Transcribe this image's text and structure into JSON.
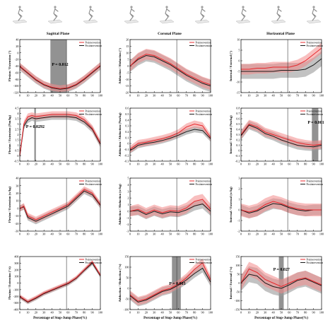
{
  "figure": {
    "column_titles": [
      "Sagittal Plane",
      "Coronal Plane",
      "Horizontal Plane"
    ],
    "xlabel": "Percentage of Stop-Jump Phase(%)",
    "xticks": [
      0,
      10,
      20,
      30,
      40,
      50,
      60,
      70,
      80,
      90,
      100
    ],
    "legend": [
      "Preintervention",
      "Postintervention"
    ],
    "colors": {
      "pre": "#e8282d",
      "pre_band": "#f28b8b",
      "post": "#1a1a1a",
      "post_band": "#9a9a9a",
      "sig": "#6e6e6e"
    },
    "icon_names": [
      "skier-posture-icon-1",
      "skier-posture-icon-2",
      "skier-posture-icon-3",
      "skier-posture-icon-4",
      "skier-posture-icon-5",
      "skier-posture-icon-6",
      "skier-posture-icon-7",
      "skier-posture-icon-8",
      "skier-posture-icon-9"
    ]
  },
  "chart_data": [
    {
      "type": "line",
      "row": 0,
      "col": 0,
      "ylabel": "Flexion / Extension (°)",
      "ylim": [
        -120,
        40
      ],
      "yticks": [
        -120,
        -100,
        -80,
        -60,
        -40,
        -20,
        0,
        20,
        40
      ],
      "x": [
        0,
        10,
        20,
        30,
        40,
        50,
        60,
        70,
        80,
        90,
        100
      ],
      "series": [
        {
          "name": "Preintervention",
          "values": [
            -40,
            -60,
            -80,
            -95,
            -104,
            -108,
            -105,
            -95,
            -78,
            -58,
            -38
          ],
          "band": 10
        },
        {
          "name": "Postintervention",
          "values": [
            -42,
            -62,
            -82,
            -97,
            -106,
            -110,
            -107,
            -97,
            -80,
            -60,
            -40
          ],
          "band": 11
        }
      ],
      "shaded_regions": [
        {
          "from": 38,
          "to": 58
        }
      ],
      "annotations": [
        {
          "text": "P = 0.012"
        }
      ],
      "vline": 58
    },
    {
      "type": "line",
      "row": 0,
      "col": 1,
      "ylabel": "Adduction / Abduction (°)",
      "ylim": [
        -20,
        20
      ],
      "yticks": [
        -20,
        -15,
        -10,
        -5,
        0,
        5,
        10,
        15,
        20
      ],
      "x": [
        0,
        10,
        20,
        30,
        40,
        50,
        60,
        70,
        80,
        90,
        100
      ],
      "series": [
        {
          "name": "Preintervention",
          "values": [
            0,
            6,
            9,
            8,
            5,
            2,
            -2,
            -6,
            -9,
            -12,
            -14
          ],
          "band": 4
        },
        {
          "name": "Postintervention",
          "values": [
            0,
            5,
            8,
            7,
            4,
            1,
            -3,
            -7,
            -10,
            -13,
            -15
          ],
          "band": 4.5
        }
      ],
      "shaded_regions": [],
      "annotations": [],
      "vline": 58
    },
    {
      "type": "line",
      "row": 0,
      "col": 2,
      "ylabel": "Internal / External (°)",
      "ylim": [
        -15,
        10
      ],
      "yticks": [
        -15,
        -10,
        -5,
        0,
        5,
        10
      ],
      "x": [
        0,
        10,
        20,
        30,
        40,
        50,
        60,
        70,
        80,
        90,
        100
      ],
      "series": [
        {
          "name": "Preintervention",
          "values": [
            -4,
            -4,
            -3.5,
            -3.5,
            -3,
            -3,
            -3,
            -2,
            0,
            3,
            6
          ],
          "band": 2.5
        },
        {
          "name": "Postintervention",
          "values": [
            -5,
            -5,
            -5,
            -5,
            -5,
            -4.5,
            -4.5,
            -4.5,
            -4,
            -2,
            1
          ],
          "band": 3.5
        }
      ],
      "shaded_regions": [],
      "annotations": [],
      "vline": 58
    },
    {
      "type": "line",
      "row": 1,
      "col": 0,
      "ylabel": "Flexion / Extension (Nm/kg)",
      "ylim": [
        -0.5,
        4.5
      ],
      "yticks": [
        -0.5,
        0,
        0.5,
        1,
        1.5,
        2,
        2.5,
        3,
        3.5,
        4,
        4.5
      ],
      "x": [
        0,
        5,
        10,
        15,
        20,
        30,
        40,
        50,
        60,
        70,
        80,
        90,
        100
      ],
      "series": [
        {
          "name": "Preintervention",
          "values": [
            0,
            3,
            3.7,
            3.8,
            3.7,
            3.8,
            3.9,
            3.9,
            3.9,
            3.8,
            3.4,
            2.6,
            1.2
          ],
          "band": 0.3
        },
        {
          "name": "Postintervention",
          "values": [
            0,
            2.8,
            3.4,
            3.6,
            3.5,
            3.6,
            3.7,
            3.7,
            3.7,
            3.6,
            3.2,
            2.5,
            1.1
          ],
          "band": 0.3
        }
      ],
      "shaded_regions": [
        {
          "from": 18,
          "to": 20
        }
      ],
      "annotations": [
        {
          "text": "P = 0.0292"
        }
      ],
      "vline": 58
    },
    {
      "type": "line",
      "row": 1,
      "col": 1,
      "ylabel": "Adduction / Abduction (Nm/kg)",
      "ylim": [
        -0.3,
        0.6
      ],
      "yticks": [
        -0.3,
        -0.2,
        -0.1,
        0,
        0.1,
        0.2,
        0.3,
        0.4,
        0.5,
        0.6
      ],
      "x": [
        0,
        5,
        10,
        20,
        30,
        40,
        50,
        60,
        70,
        80,
        90,
        100
      ],
      "series": [
        {
          "name": "Preintervention",
          "values": [
            -0.1,
            -0.05,
            0,
            0.02,
            0.05,
            0.08,
            0.12,
            0.18,
            0.28,
            0.33,
            0.3,
            0.1
          ],
          "band": 0.06
        },
        {
          "name": "Postintervention",
          "values": [
            -0.12,
            -0.08,
            -0.03,
            0,
            0.02,
            0.05,
            0.09,
            0.14,
            0.2,
            0.24,
            0.22,
            0.08
          ],
          "band": 0.05
        }
      ],
      "shaded_regions": [],
      "annotations": [],
      "vline": 58
    },
    {
      "type": "line",
      "row": 1,
      "col": 2,
      "ylabel": "Internal / External (Nm/kg)",
      "ylim": [
        -0.2,
        0.8
      ],
      "yticks": [
        -0.2,
        -0.1,
        0,
        0.1,
        0.2,
        0.3,
        0.4,
        0.5,
        0.6,
        0.7,
        0.8
      ],
      "x": [
        0,
        10,
        20,
        30,
        40,
        50,
        60,
        70,
        80,
        90,
        100
      ],
      "series": [
        {
          "name": "Preintervention",
          "values": [
            0.3,
            0.5,
            0.45,
            0.35,
            0.3,
            0.25,
            0.2,
            0.15,
            0.12,
            0.1,
            0.12
          ],
          "band": 0.08
        },
        {
          "name": "Postintervention",
          "values": [
            0.28,
            0.48,
            0.42,
            0.32,
            0.27,
            0.2,
            0.15,
            0.1,
            0.08,
            0.07,
            0.1
          ],
          "band": 0.08
        }
      ],
      "shaded_regions": [
        {
          "from": 88,
          "to": 96
        }
      ],
      "annotations": [
        {
          "text": "P = 0.001"
        }
      ],
      "vline": 58
    },
    {
      "type": "line",
      "row": 2,
      "col": 0,
      "ylabel": "Flexion / Extension (w/kg)",
      "ylim": [
        -30,
        40
      ],
      "yticks": [
        -30,
        -20,
        -10,
        0,
        10,
        20,
        30,
        40
      ],
      "x": [
        0,
        5,
        10,
        20,
        30,
        40,
        50,
        60,
        70,
        80,
        90,
        100
      ],
      "series": [
        {
          "name": "Preintervention",
          "values": [
            0,
            3,
            -10,
            -15,
            -10,
            -5,
            0,
            5,
            15,
            25,
            20,
            5
          ],
          "band": 4
        },
        {
          "name": "Postintervention",
          "values": [
            0,
            2,
            -12,
            -17,
            -12,
            -7,
            -2,
            3,
            13,
            23,
            18,
            4
          ],
          "band": 4
        }
      ],
      "shaded_regions": [],
      "annotations": [],
      "vline": 58
    },
    {
      "type": "line",
      "row": 2,
      "col": 1,
      "ylabel": "Adduction / Abduction (w/kg)",
      "ylim": [
        -3,
        5
      ],
      "yticks": [
        -3,
        -2,
        -1,
        0,
        1,
        2,
        3,
        4,
        5
      ],
      "x": [
        0,
        10,
        20,
        30,
        40,
        50,
        60,
        70,
        80,
        90,
        100
      ],
      "series": [
        {
          "name": "Preintervention",
          "values": [
            0,
            0.3,
            -0.3,
            0.2,
            -0.2,
            0.1,
            0,
            0.5,
            1.5,
            1.8,
            0.3
          ],
          "band": 0.8
        },
        {
          "name": "Postintervention",
          "values": [
            0,
            0.1,
            -0.5,
            0,
            -0.4,
            -0.1,
            -0.2,
            0.2,
            0.8,
            1.1,
            0
          ],
          "band": 0.7
        }
      ],
      "shaded_regions": [],
      "annotations": [],
      "vline": 58
    },
    {
      "type": "line",
      "row": 2,
      "col": 2,
      "ylabel": "Internal / External (w/kg)",
      "ylim": [
        -2,
        3
      ],
      "yticks": [
        -2,
        -1,
        0,
        1,
        2,
        3
      ],
      "x": [
        0,
        10,
        20,
        30,
        40,
        50,
        60,
        70,
        80,
        90,
        100
      ],
      "series": [
        {
          "name": "Preintervention",
          "values": [
            0,
            -0.2,
            0,
            0.5,
            0.8,
            0.6,
            0.3,
            0.1,
            0,
            0,
            0
          ],
          "band": 0.6
        },
        {
          "name": "Postintervention",
          "values": [
            0,
            -0.3,
            -0.1,
            0.3,
            0.6,
            0.5,
            0.2,
            0,
            -0.1,
            0,
            0
          ],
          "band": 0.5
        }
      ],
      "shaded_regions": [],
      "annotations": [],
      "vline": 58
    },
    {
      "type": "line",
      "row": 3,
      "col": 0,
      "ylabel": "Flexion / Extension (°/s)",
      "ylim": [
        -400,
        400
      ],
      "yticks": [
        -400,
        -300,
        -200,
        -100,
        0,
        100,
        200,
        300,
        400
      ],
      "x": [
        0,
        10,
        20,
        30,
        40,
        50,
        60,
        70,
        80,
        90,
        100
      ],
      "series": [
        {
          "name": "Preintervention",
          "values": [
            -200,
            -280,
            -220,
            -150,
            -100,
            -50,
            0,
            80,
            200,
            320,
            120
          ],
          "band": 30
        },
        {
          "name": "Postintervention",
          "values": [
            -210,
            -290,
            -230,
            -160,
            -110,
            -60,
            -10,
            70,
            190,
            300,
            110
          ],
          "band": 30
        }
      ],
      "shaded_regions": [],
      "annotations": [],
      "vline": 58
    },
    {
      "type": "line",
      "row": 3,
      "col": 1,
      "ylabel": "Adduction / Abduction (°/s)",
      "ylim": [
        -100,
        150
      ],
      "yticks": [
        -100,
        -50,
        0,
        50,
        100,
        150
      ],
      "x": [
        0,
        10,
        20,
        30,
        40,
        50,
        60,
        70,
        80,
        90,
        100
      ],
      "series": [
        {
          "name": "Preintervention",
          "values": [
            -30,
            -60,
            -50,
            -30,
            -10,
            0,
            20,
            50,
            90,
            120,
            40
          ],
          "band": 20
        },
        {
          "name": "Postintervention",
          "values": [
            -35,
            -65,
            -55,
            -35,
            -15,
            -5,
            15,
            40,
            70,
            95,
            30
          ],
          "band": 20
        }
      ],
      "shaded_regions": [
        {
          "from": 52,
          "to": 63
        }
      ],
      "annotations": [
        {
          "text": "P = 0.003"
        }
      ],
      "vline": 58
    },
    {
      "type": "line",
      "row": 3,
      "col": 2,
      "ylabel": "Internal / External (°/s)",
      "ylim": [
        -150,
        150
      ],
      "yticks": [
        -150,
        -100,
        -50,
        0,
        50,
        100,
        150
      ],
      "x": [
        0,
        10,
        20,
        30,
        40,
        50,
        60,
        70,
        80,
        90,
        100
      ],
      "series": [
        {
          "name": "Preintervention",
          "values": [
            0,
            80,
            60,
            20,
            0,
            -20,
            0,
            20,
            30,
            10,
            -10
          ],
          "band": 40
        },
        {
          "name": "Postintervention",
          "values": [
            0,
            50,
            40,
            0,
            -20,
            -30,
            -10,
            15,
            25,
            5,
            -15
          ],
          "band": 45
        }
      ],
      "shaded_regions": [
        {
          "from": 47,
          "to": 53
        }
      ],
      "annotations": [
        {
          "text": "P = 0.027"
        }
      ],
      "vline": 58
    }
  ]
}
